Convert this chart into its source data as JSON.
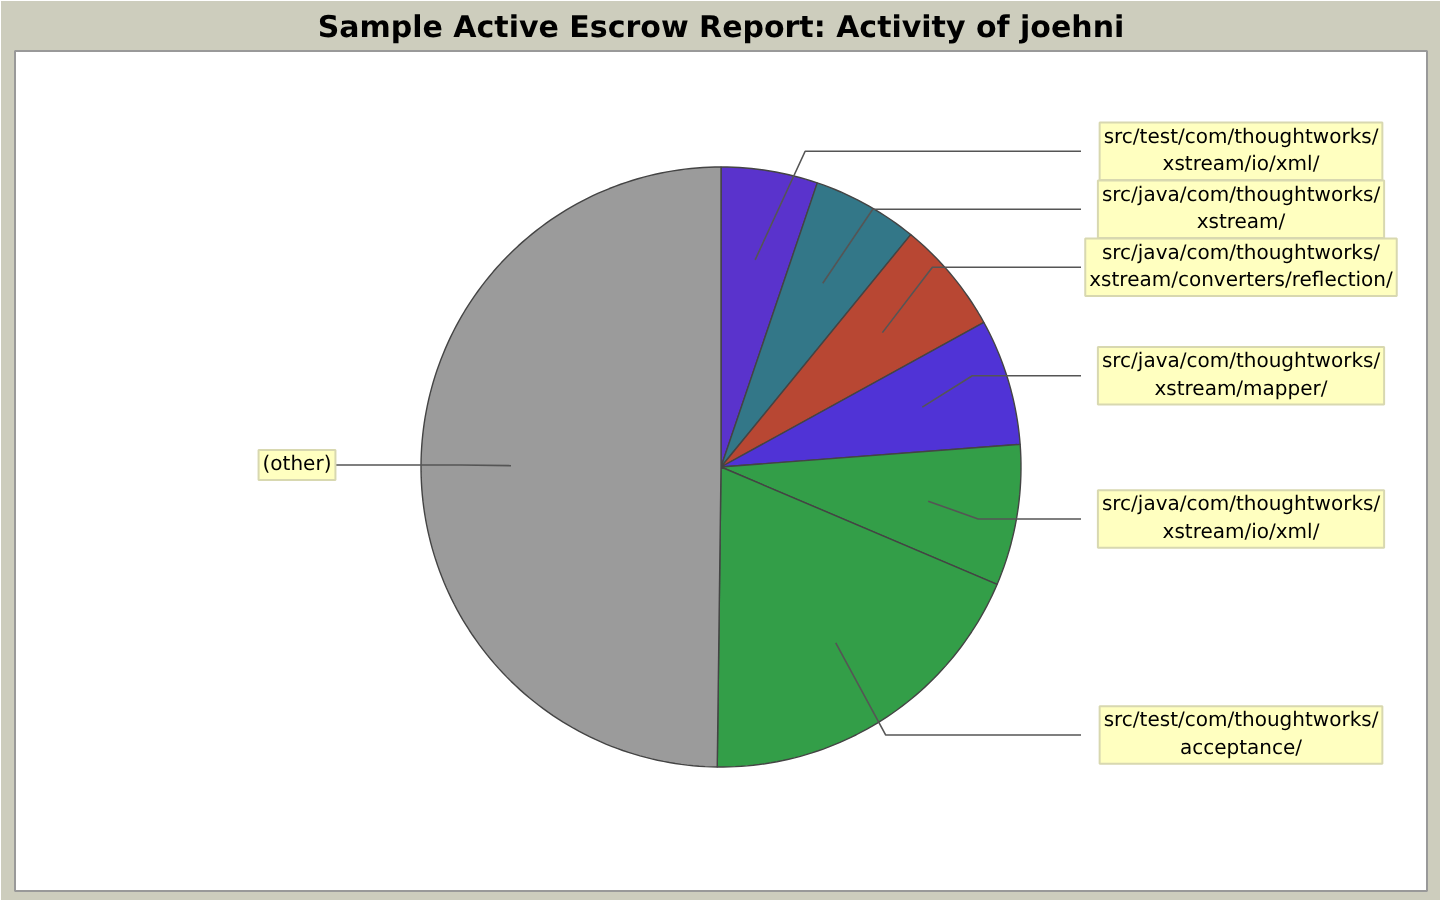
{
  "chart_data": {
    "type": "pie",
    "title": "Sample Active Escrow Report: Activity of joehni",
    "categories": [
      "src/test/com/thoughtworks/xstream/io/xml/",
      "src/java/com/thoughtworks/xstream/",
      "src/java/com/thoughtworks/xstream/converters/reflection/",
      "src/java/com/thoughtworks/xstream/mapper/",
      "src/java/com/thoughtworks/xstream/io/xml/",
      "src/test/com/thoughtworks/acceptance/",
      "(other)"
    ],
    "values": [
      5.2,
      5.7,
      6.1,
      6.8,
      7.6,
      18.8,
      49.8
    ],
    "colors": [
      "#5a33cc",
      "#337788",
      "#b84733",
      "#5033d6",
      "#339e48",
      "#339e48",
      "#9b9b9b"
    ]
  }
}
